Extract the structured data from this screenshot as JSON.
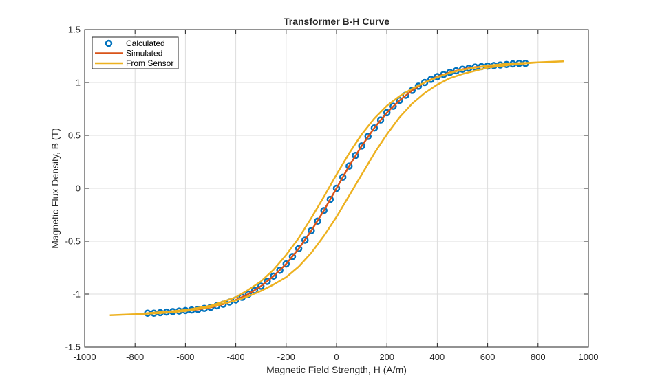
{
  "chart_data": {
    "type": "line",
    "title": "Transformer B-H Curve",
    "xlabel": "Magnetic Field Strength, H (A/m)",
    "ylabel": "Magnetic Flux Density, B (T)",
    "xlim": [
      -1000,
      1000
    ],
    "ylim": [
      -1.5,
      1.5
    ],
    "xticks": [
      -1000,
      -800,
      -600,
      -400,
      -200,
      0,
      200,
      400,
      600,
      800,
      1000
    ],
    "xtick_labels": [
      "-1000",
      "-800",
      "-600",
      "-400",
      "-200",
      "0",
      "200",
      "400",
      "600",
      "800",
      "1000"
    ],
    "yticks": [
      -1.5,
      -1,
      -0.5,
      0,
      0.5,
      1,
      1.5
    ],
    "ytick_labels": [
      "-1.5",
      "-1",
      "-0.5",
      "0",
      "0.5",
      "1",
      "1.5"
    ],
    "grid": true,
    "legend_position": "top-left",
    "series": [
      {
        "name": "Calculated",
        "style": "markers",
        "marker": "circle",
        "color": "#0072BD",
        "x": [
          -750,
          -725,
          -700,
          -675,
          -650,
          -625,
          -600,
          -575,
          -550,
          -525,
          -500,
          -475,
          -450,
          -425,
          -400,
          -375,
          -350,
          -325,
          -300,
          -275,
          -250,
          -225,
          -200,
          -175,
          -150,
          -125,
          -100,
          -75,
          -50,
          -25,
          0,
          25,
          50,
          75,
          100,
          125,
          150,
          175,
          200,
          225,
          250,
          275,
          300,
          325,
          350,
          375,
          400,
          425,
          450,
          475,
          500,
          525,
          550,
          575,
          600,
          625,
          650,
          675,
          700,
          725,
          750
        ],
        "y": [
          -1.18,
          -1.18,
          -1.175,
          -1.17,
          -1.165,
          -1.16,
          -1.155,
          -1.15,
          -1.145,
          -1.135,
          -1.125,
          -1.11,
          -1.095,
          -1.075,
          -1.055,
          -1.03,
          -1.0,
          -0.965,
          -0.925,
          -0.88,
          -0.83,
          -0.775,
          -0.715,
          -0.645,
          -0.57,
          -0.49,
          -0.4,
          -0.31,
          -0.21,
          -0.105,
          0.0,
          0.105,
          0.21,
          0.31,
          0.4,
          0.49,
          0.57,
          0.645,
          0.715,
          0.775,
          0.83,
          0.88,
          0.925,
          0.965,
          1.0,
          1.03,
          1.055,
          1.075,
          1.095,
          1.11,
          1.125,
          1.135,
          1.145,
          1.15,
          1.155,
          1.16,
          1.165,
          1.17,
          1.175,
          1.18,
          1.18
        ]
      },
      {
        "name": "Simulated",
        "style": "line",
        "color": "#D95319",
        "x": [
          -750,
          -700,
          -650,
          -600,
          -550,
          -500,
          -450,
          -400,
          -350,
          -300,
          -250,
          -200,
          -150,
          -100,
          -50,
          0,
          50,
          100,
          150,
          200,
          250,
          300,
          350,
          400,
          450,
          500,
          550,
          600,
          650,
          700,
          750
        ],
        "y": [
          -1.18,
          -1.175,
          -1.165,
          -1.155,
          -1.145,
          -1.125,
          -1.095,
          -1.055,
          -1.0,
          -0.925,
          -0.83,
          -0.715,
          -0.57,
          -0.4,
          -0.21,
          0.0,
          0.21,
          0.4,
          0.57,
          0.715,
          0.83,
          0.925,
          1.0,
          1.055,
          1.095,
          1.125,
          1.145,
          1.155,
          1.165,
          1.175,
          1.18
        ]
      },
      {
        "name": "From Sensor",
        "style": "line",
        "color": "#EDB120",
        "x": [
          -900,
          -800,
          -700,
          -600,
          -500,
          -400,
          -350,
          -300,
          -250,
          -200,
          -150,
          -100,
          -50,
          0,
          50,
          100,
          150,
          200,
          250,
          300,
          350,
          400,
          450,
          500,
          600,
          700,
          800,
          900,
          900,
          800,
          700,
          600,
          500,
          450,
          400,
          350,
          300,
          250,
          200,
          150,
          100,
          50,
          0,
          -50,
          -100,
          -150,
          -200,
          -250,
          -300,
          -350,
          -400,
          -450,
          -500,
          -600,
          -700,
          -800,
          -900
        ],
        "y": [
          -1.2,
          -1.19,
          -1.18,
          -1.16,
          -1.12,
          -1.06,
          -1.02,
          -0.97,
          -0.91,
          -0.84,
          -0.74,
          -0.61,
          -0.45,
          -0.27,
          -0.07,
          0.13,
          0.33,
          0.51,
          0.67,
          0.8,
          0.9,
          0.98,
          1.04,
          1.08,
          1.14,
          1.17,
          1.19,
          1.2,
          1.2,
          1.19,
          1.18,
          1.16,
          1.12,
          1.09,
          1.05,
          1.0,
          0.94,
          0.87,
          0.78,
          0.66,
          0.51,
          0.33,
          0.13,
          -0.08,
          -0.28,
          -0.47,
          -0.63,
          -0.77,
          -0.88,
          -0.96,
          -1.03,
          -1.07,
          -1.11,
          -1.15,
          -1.17,
          -1.19,
          -1.2
        ]
      }
    ]
  }
}
